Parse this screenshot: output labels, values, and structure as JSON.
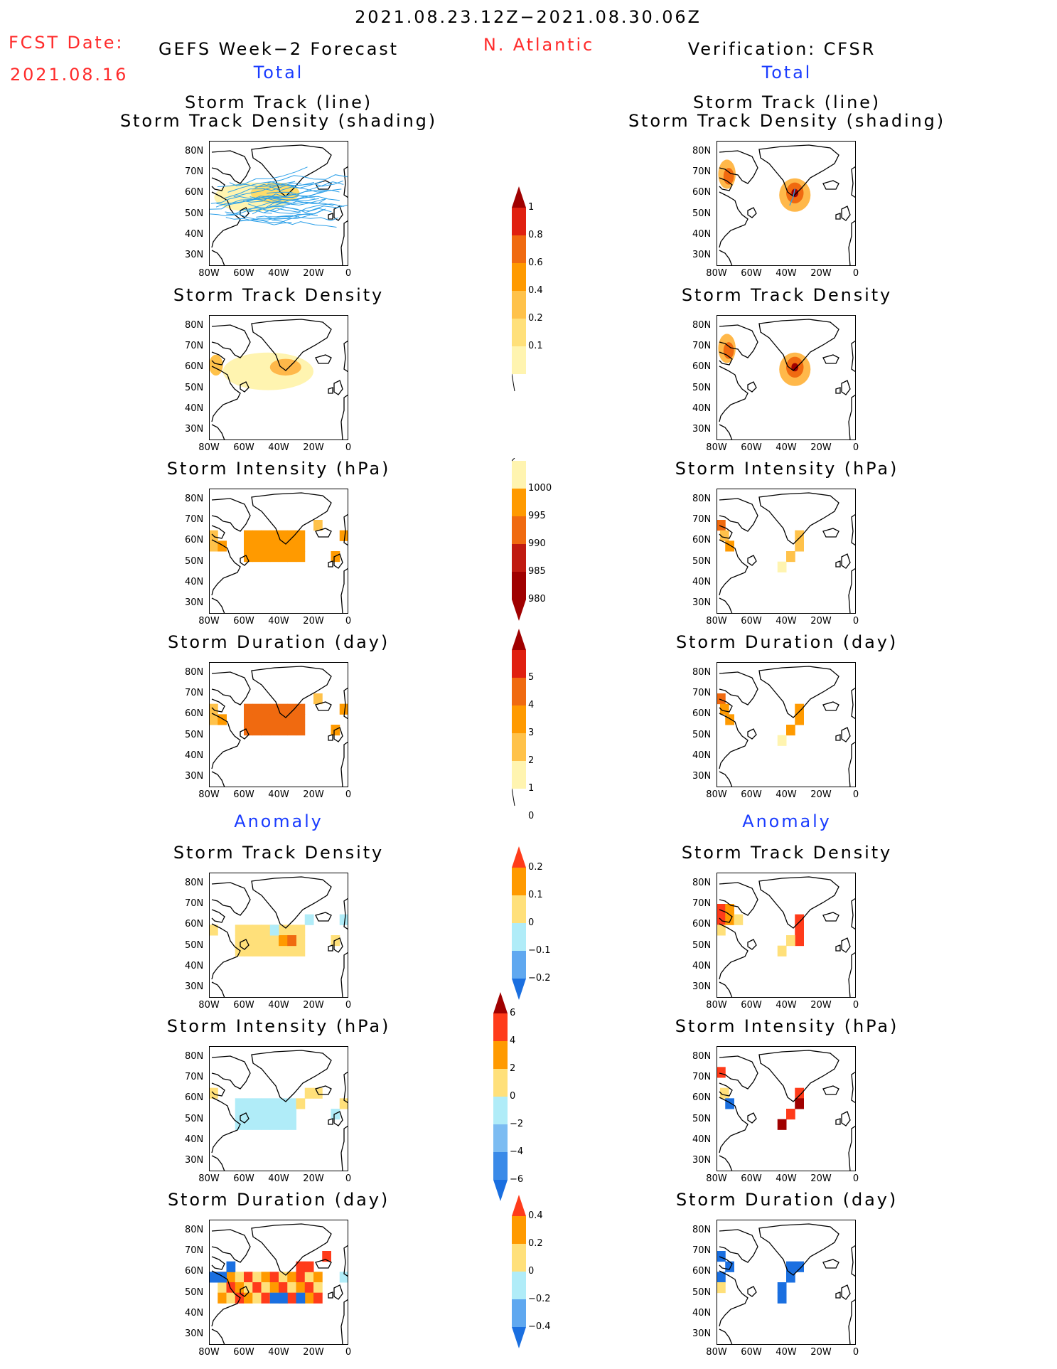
{
  "header": {
    "period": "2021.08.23.12Z−2021.08.30.06Z",
    "fcst_label": "FCST Date:",
    "fcst_date": "2021.08.16",
    "left_title": "GEFS Week−2 Forecast",
    "region": "N. Atlantic",
    "right_title": "Verification: CFSR"
  },
  "sections": {
    "total": "Total",
    "anomaly": "Anomaly"
  },
  "panel_titles": {
    "track_line": "Storm Track (line)",
    "track_shading": "Storm Track Density (shading)",
    "density": "Storm Track Density",
    "intensity": "Storm Intensity (hPa)",
    "duration": "Storm Duration (day)"
  },
  "axes": {
    "lat_labels": [
      "80N",
      "70N",
      "60N",
      "50N",
      "40N",
      "30N"
    ],
    "lon_labels": [
      "80W",
      "60W",
      "40W",
      "20W",
      "0"
    ]
  },
  "colorbars": {
    "density_total": [
      "1",
      "0.8",
      "0.6",
      "0.4",
      "0.2",
      "0.1"
    ],
    "intensity_total": [
      "1000",
      "995",
      "990",
      "985",
      "980"
    ],
    "duration_total": [
      "5",
      "4",
      "3",
      "2",
      "1",
      "0"
    ],
    "density_anomaly": [
      "0.2",
      "0.1",
      "0",
      "−0.1",
      "−0.2"
    ],
    "intensity_anomaly": [
      "6",
      "4",
      "2",
      "0",
      "−2",
      "−4",
      "−6"
    ],
    "duration_anomaly": [
      "0.4",
      "0.2",
      "0",
      "−0.2",
      "−0.4"
    ]
  },
  "colors": {
    "title_red": "#ff2a2a",
    "section_blue": "#1a3cff",
    "track_lines": "#2b9fe8",
    "pale_yellow": "#fff4b0",
    "orange": "#ff9a00",
    "dark_orange": "#f06a10",
    "dark_red": "#a00000",
    "light_cyan": "#b0ecf8",
    "blue": "#1a6fe0"
  }
}
